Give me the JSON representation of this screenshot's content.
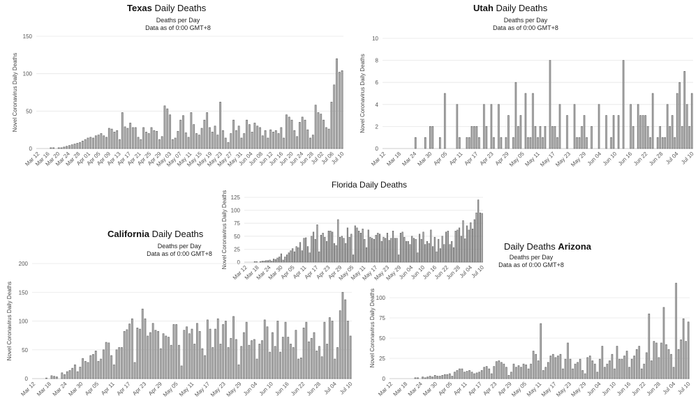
{
  "chart_data": [
    {
      "id": "texas",
      "type": "bar",
      "title_state": "Texas",
      "title_rest": "Daily Deaths",
      "subtitle": "Deaths per Day",
      "note": "Data as of 0:00 GMT+8",
      "ylabel": "Novel Coronavirus Daily Deaths",
      "ylim": [
        0,
        150
      ],
      "yticks": [
        0,
        50,
        100,
        150
      ],
      "x_start": "Mar 12",
      "x_ticks": [
        "Mar 12",
        "Mar 16",
        "Mar 20",
        "Mar 24",
        "Mar 28",
        "Apr 01",
        "Apr 05",
        "Apr 09",
        "Apr 13",
        "Apr 17",
        "Apr 21",
        "Apr 25",
        "Apr 29",
        "May 03",
        "May 07",
        "May 11",
        "May 15",
        "May 19",
        "May 23",
        "May 27",
        "May 31",
        "Jun 04",
        "Jun 08",
        "Jun 12",
        "Jun 16",
        "Jun 20",
        "Jun 24",
        "Jun 28",
        "Jul 02",
        "Jul 06",
        "Jul 10"
      ],
      "values": [
        0,
        0,
        0,
        0,
        0,
        1,
        1,
        0,
        1,
        1,
        2,
        3,
        4,
        5,
        6,
        7,
        8,
        10,
        12,
        14,
        15,
        14,
        17,
        18,
        20,
        17,
        15,
        27,
        26,
        22,
        24,
        12,
        48,
        29,
        27,
        34,
        28,
        28,
        15,
        12,
        28,
        22,
        20,
        28,
        24,
        23,
        12,
        16,
        57,
        53,
        45,
        12,
        14,
        23,
        38,
        44,
        21,
        15,
        48,
        32,
        20,
        18,
        27,
        38,
        48,
        28,
        22,
        30,
        18,
        62,
        24,
        14,
        8,
        20,
        38,
        24,
        30,
        14,
        20,
        38,
        32,
        22,
        34,
        30,
        28,
        17,
        24,
        14,
        25,
        22,
        24,
        20,
        28,
        14,
        45,
        42,
        38,
        24,
        16,
        35,
        42,
        38,
        25,
        14,
        18,
        58,
        48,
        46,
        38,
        28,
        26,
        62,
        85,
        120,
        102,
        104
      ]
    },
    {
      "id": "utah",
      "type": "bar",
      "title_state": "Utah",
      "title_rest": "Daily Deaths",
      "subtitle": "Deaths per Day",
      "note": "Data as of 0:00 GMT+8",
      "ylabel": "Novel Coronavirus Daily Deaths",
      "ylim": [
        0,
        10
      ],
      "yticks": [
        0,
        2,
        4,
        6,
        8,
        10
      ],
      "x_ticks": [
        "Mar 12",
        "Mar 18",
        "Mar 24",
        "Mar 30",
        "Apr 05",
        "Apr 11",
        "Apr 17",
        "Apr 23",
        "Apr 29",
        "May 05",
        "May 11",
        "May 17",
        "May 23",
        "May 29",
        "Jun 04",
        "Jun 10",
        "Jun 16",
        "Jun 22",
        "Jun 28",
        "Jul 04",
        "Jul 10"
      ],
      "values": [
        0,
        0,
        0,
        0,
        0,
        0,
        0,
        0,
        0,
        0,
        0,
        0,
        0,
        1,
        0,
        0,
        0,
        1,
        0,
        2,
        2,
        0,
        0,
        1,
        0,
        5,
        0,
        0,
        0,
        0,
        4,
        1,
        0,
        0,
        1,
        1,
        2,
        2,
        2,
        1,
        0,
        4,
        2,
        0,
        4,
        1,
        0,
        4,
        1,
        0,
        1,
        3,
        0,
        1,
        6,
        2,
        3,
        0,
        5,
        1,
        1,
        5,
        2,
        1,
        2,
        1,
        2,
        0,
        8,
        2,
        2,
        1,
        4,
        0,
        0,
        3,
        0,
        0,
        4,
        1,
        1,
        2,
        3,
        1,
        0,
        2,
        0,
        0,
        4,
        0,
        0,
        3,
        0,
        1,
        3,
        0,
        3,
        0,
        8,
        0,
        0,
        4,
        2,
        0,
        4,
        3,
        3,
        3,
        2,
        1,
        5,
        0,
        1,
        2,
        1,
        1,
        4,
        2,
        3,
        1,
        5,
        6,
        2,
        7,
        4,
        2,
        5
      ],
      "note_values": "approximate"
    },
    {
      "id": "florida",
      "type": "bar",
      "title_state": "Florida",
      "title_rest": "Daily Deaths",
      "ylabel": "Novel Coronavirus Daily Deaths",
      "ylim": [
        0,
        125
      ],
      "yticks": [
        0,
        25,
        50,
        75,
        100,
        125
      ],
      "x_ticks": [
        "Mar 12",
        "Mar 18",
        "Mar 24",
        "Mar 30",
        "Apr 05",
        "Apr 11",
        "Apr 17",
        "Apr 23",
        "Apr 29",
        "May 05",
        "May 11",
        "May 17",
        "May 23",
        "May 29",
        "Jun 04",
        "Jun 10",
        "Jun 16",
        "Jun 22",
        "Jun 28",
        "Jul 04",
        "Jul 10"
      ],
      "values": [
        0,
        0,
        0,
        0,
        0,
        1,
        1,
        0,
        1,
        2,
        2,
        3,
        3,
        4,
        2,
        6,
        5,
        8,
        10,
        16,
        4,
        10,
        14,
        18,
        22,
        26,
        20,
        30,
        28,
        38,
        22,
        46,
        47,
        30,
        18,
        50,
        58,
        44,
        72,
        20,
        52,
        56,
        48,
        40,
        60,
        60,
        58,
        36,
        32,
        82,
        48,
        50,
        46,
        36,
        66,
        48,
        54,
        14,
        70,
        66,
        60,
        56,
        64,
        44,
        28,
        62,
        48,
        46,
        44,
        52,
        56,
        54,
        40,
        48,
        46,
        56,
        42,
        46,
        60,
        46,
        46,
        14,
        56,
        58,
        48,
        40,
        40,
        34,
        50,
        46,
        44,
        18,
        54,
        44,
        58,
        34,
        40,
        36,
        62,
        30,
        48,
        20,
        44,
        26,
        50,
        34,
        58,
        60,
        34,
        40,
        28,
        60,
        62,
        66,
        50,
        80,
        45,
        70,
        62,
        76,
        64,
        82,
        95,
        120,
        95,
        94
      ]
    },
    {
      "id": "california",
      "type": "bar",
      "title_state": "California",
      "title_rest": "Daily Deaths",
      "subtitle": "Deaths per Day",
      "note": "Data as of 0:00 GMT+8",
      "ylabel": "Novel Coronavirus Daily Deaths",
      "ylim": [
        0,
        200
      ],
      "yticks": [
        0,
        50,
        100,
        150,
        200
      ],
      "x_ticks": [
        "Mar 12",
        "Mar 18",
        "Mar 24",
        "Mar 30",
        "Apr 05",
        "Apr 11",
        "Apr 17",
        "Apr 23",
        "Apr 29",
        "May 05",
        "May 11",
        "May 17",
        "May 23",
        "May 29",
        "Jun 04",
        "Jun 10",
        "Jun 16",
        "Jun 22",
        "Jun 28",
        "Jul 04",
        "Jul 10"
      ],
      "values": [
        0,
        0,
        0,
        0,
        0,
        1,
        0,
        5,
        4,
        3,
        0,
        10,
        7,
        12,
        14,
        18,
        24,
        12,
        20,
        35,
        30,
        28,
        40,
        42,
        48,
        30,
        34,
        50,
        63,
        62,
        40,
        24,
        50,
        54,
        54,
        82,
        85,
        95,
        104,
        28,
        88,
        86,
        121,
        104,
        74,
        80,
        96,
        84,
        82,
        52,
        78,
        74,
        72,
        58,
        94,
        94,
        58,
        22,
        84,
        90,
        78,
        86,
        60,
        96,
        82,
        52,
        40,
        102,
        86,
        54,
        86,
        104,
        60,
        94,
        100,
        54,
        70,
        108,
        68,
        24,
        56,
        80,
        98,
        58,
        66,
        68,
        34,
        60,
        66,
        102,
        90,
        46,
        80,
        56,
        100,
        46,
        72,
        98,
        72,
        60,
        54,
        84,
        34,
        36,
        88,
        98,
        64,
        70,
        80,
        48,
        56,
        38,
        98,
        60,
        106,
        100,
        34,
        54,
        118,
        150,
        137,
        100,
        74
      ]
    },
    {
      "id": "arizona",
      "type": "bar",
      "title_state": "Arizona",
      "title_rest": "Daily Deaths",
      "subtitle": "Deaths per Day",
      "note": "Data as of 0:00 GMT+8",
      "ylabel": "Novel Coronavirus Daily Deaths",
      "ylim": [
        0,
        125
      ],
      "yticks": [
        0,
        25,
        50,
        75,
        100
      ],
      "x_ticks": [
        "Mar 12",
        "Mar 18",
        "Mar 24",
        "Mar 30",
        "Apr 05",
        "Apr 11",
        "Apr 17",
        "Apr 23",
        "Apr 29",
        "May 05",
        "May 11",
        "May 17",
        "May 23",
        "May 29",
        "Jun 04",
        "Jun 10",
        "Jun 16",
        "Jun 22",
        "Jun 28",
        "Jul 04",
        "Jul 10"
      ],
      "values": [
        0,
        0,
        0,
        0,
        0,
        0,
        0,
        0,
        0,
        0,
        1,
        1,
        0,
        2,
        1,
        2,
        3,
        2,
        4,
        3,
        3,
        4,
        5,
        5,
        6,
        3,
        8,
        10,
        12,
        12,
        8,
        9,
        10,
        8,
        6,
        7,
        8,
        10,
        14,
        15,
        12,
        6,
        15,
        21,
        22,
        20,
        18,
        14,
        4,
        8,
        18,
        14,
        16,
        14,
        18,
        17,
        12,
        18,
        34,
        30,
        22,
        68,
        10,
        14,
        20,
        28,
        30,
        26,
        28,
        30,
        12,
        24,
        44,
        24,
        12,
        18,
        20,
        24,
        10,
        6,
        26,
        28,
        22,
        18,
        8,
        24,
        40,
        14,
        18,
        22,
        30,
        12,
        40,
        24,
        24,
        28,
        34,
        14,
        24,
        28,
        36,
        40,
        12,
        18,
        32,
        80,
        22,
        46,
        44,
        26,
        44,
        88,
        42,
        36,
        30,
        14,
        118,
        36,
        48,
        74,
        46,
        70
      ]
    }
  ]
}
